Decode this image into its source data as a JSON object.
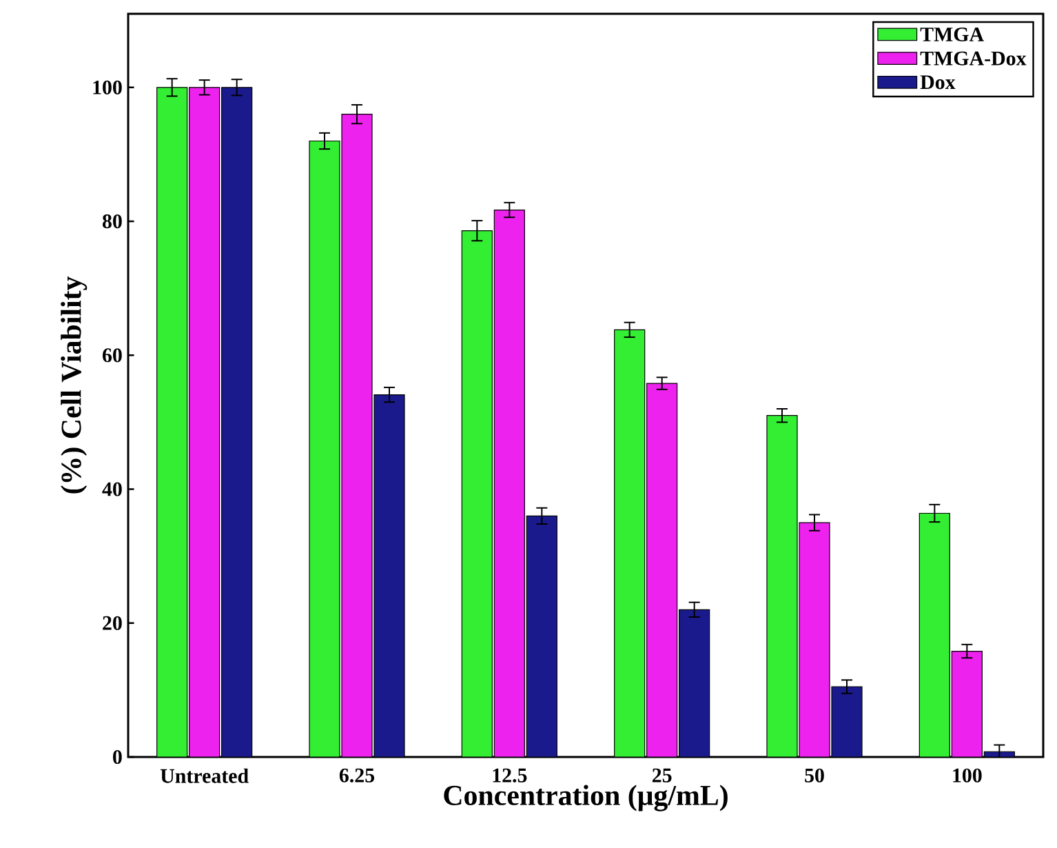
{
  "chart_data": {
    "type": "bar",
    "xlabel": "Concentration (μg/mL)",
    "ylabel": "(%) Cell Viability",
    "categories": [
      "Untreated",
      "6.25",
      "12.5",
      "25",
      "50",
      "100"
    ],
    "series": [
      {
        "name": "TMGA",
        "color": "#33ee33",
        "values": [
          100,
          92,
          78.6,
          63.8,
          51,
          36.4
        ],
        "errors": [
          1.3,
          1.2,
          1.5,
          1.1,
          1,
          1.3
        ]
      },
      {
        "name": "TMGA-Dox",
        "color": "#ee22ee",
        "values": [
          100,
          96,
          81.7,
          55.8,
          35,
          15.8
        ],
        "errors": [
          1.1,
          1.4,
          1.1,
          0.9,
          1.2,
          1
        ]
      },
      {
        "name": "Dox",
        "color": "#1a1a8c",
        "values": [
          100,
          54.1,
          36,
          22,
          10.5,
          0.8
        ],
        "errors": [
          1.2,
          1.1,
          1.2,
          1.1,
          1,
          1
        ]
      }
    ],
    "ylim": [
      0,
      111
    ],
    "yticks": [
      0,
      20,
      40,
      60,
      80,
      100
    ],
    "legend": "top right",
    "grid": false
  }
}
